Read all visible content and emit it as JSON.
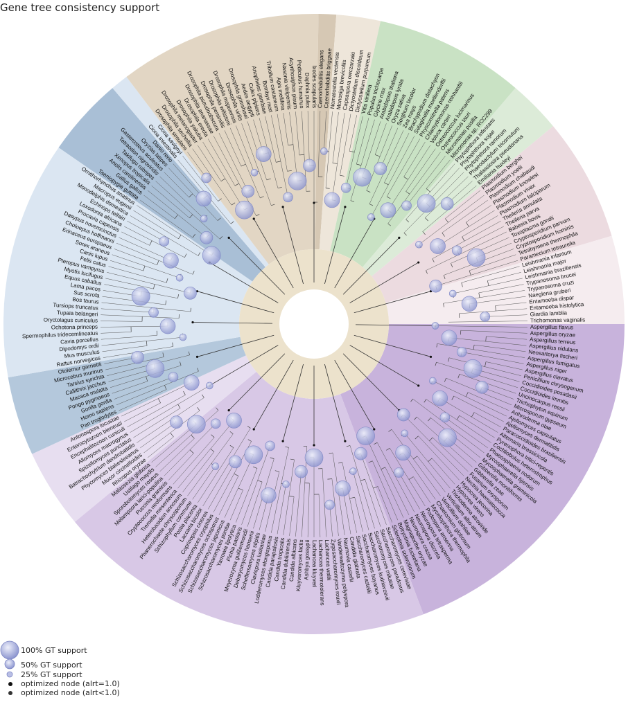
{
  "title": "Gene tree consistency support",
  "legend": [
    {
      "label": "100% GT support",
      "kind": "bubble",
      "support": 1.0
    },
    {
      "label": "50% GT support",
      "kind": "bubble",
      "support": 0.5
    },
    {
      "label": "25% GT support",
      "kind": "bubble",
      "support": 0.25
    },
    {
      "label": "optimized node (alrt=1.0)",
      "kind": "dot",
      "color": "#111111"
    },
    {
      "label": "optimized node (alrt<1.0)",
      "kind": "dot",
      "color": "#333333"
    }
  ],
  "clades": [
    {
      "name": "fungi_ascomycota",
      "color": "#c8b3dc"
    },
    {
      "name": "fungi_other",
      "color": "#d8c8e6"
    },
    {
      "name": "fungi_basal",
      "color": "#e7def0"
    },
    {
      "name": "primates",
      "color": "#b4c8dc"
    },
    {
      "name": "mammals",
      "color": "#dbe6f2"
    },
    {
      "name": "vertebrates",
      "color": "#a9bfd6"
    },
    {
      "name": "insects",
      "color": "#e2d6c4"
    },
    {
      "name": "nematodes",
      "color": "#d6c8b4"
    },
    {
      "name": "amoebozoa",
      "color": "#eee6da"
    },
    {
      "name": "plants",
      "color": "#c9e2c4"
    },
    {
      "name": "stramenopiles",
      "color": "#dcebd8"
    },
    {
      "name": "alveolates",
      "color": "#ecdbe0"
    },
    {
      "name": "protists",
      "color": "#f5ecef"
    }
  ],
  "taxa": [
    {
      "name": "Aspergillus flavus",
      "clade": 0
    },
    {
      "name": "Aspergillus oryzae",
      "clade": 0
    },
    {
      "name": "Aspergillus terreus",
      "clade": 0
    },
    {
      "name": "Aspergillus nidulans",
      "clade": 0
    },
    {
      "name": "Neosartorya fischeri",
      "clade": 0
    },
    {
      "name": "Aspergillus fumigatus",
      "clade": 0
    },
    {
      "name": "Aspergillus niger",
      "clade": 0
    },
    {
      "name": "Aspergillus clavatus",
      "clade": 0
    },
    {
      "name": "Penicillium chrysogenum",
      "clade": 0
    },
    {
      "name": "Coccidioides posadasii",
      "clade": 0
    },
    {
      "name": "Coccidioides immitis",
      "clade": 0
    },
    {
      "name": "Uncinocarpus reesii",
      "clade": 0
    },
    {
      "name": "Trichophyton equinum",
      "clade": 0
    },
    {
      "name": "Microsporum gypseum",
      "clade": 0
    },
    {
      "name": "Arthroderma otae",
      "clade": 0
    },
    {
      "name": "Ajellomyces capsulatus",
      "clade": 0
    },
    {
      "name": "Ajellomyces dermatitidis",
      "clade": 0
    },
    {
      "name": "Paracoccidioides brasiliensis",
      "clade": 0
    },
    {
      "name": "Alternaria brassicicola",
      "clade": 0
    },
    {
      "name": "Pyrenophora tritici-repentis",
      "clade": 0
    },
    {
      "name": "Cochliobolus heterostrophus",
      "clade": 0
    },
    {
      "name": "Phaeosphaeria nodorum",
      "clade": 0
    },
    {
      "name": "Mycosphaerella fijiensis",
      "clade": 0
    },
    {
      "name": "Mycosphaerella graminicola",
      "clade": 0
    },
    {
      "name": "Gibberella moniliformis",
      "clade": 0
    },
    {
      "name": "Gibberella zeae",
      "clade": 0
    },
    {
      "name": "Fusarium oxysporum",
      "clade": 0
    },
    {
      "name": "Nectria haematococca",
      "clade": 0
    },
    {
      "name": "Hypocrea jecorina",
      "clade": 0
    },
    {
      "name": "Hypocrea virens",
      "clade": 0
    },
    {
      "name": "Trichoderma atroviride",
      "clade": 0
    },
    {
      "name": "Verticillium albo-atrum",
      "clade": 0
    },
    {
      "name": "Verticillium dahliae",
      "clade": 0
    },
    {
      "name": "Chaetomium globosum",
      "clade": 0
    },
    {
      "name": "Myceliophthora thermophila",
      "clade": 0
    },
    {
      "name": "Podospora anserina",
      "clade": 0
    },
    {
      "name": "Neurospora tetrasperma",
      "clade": 0
    },
    {
      "name": "Neurospora discreta",
      "clade": 0
    },
    {
      "name": "Neurospora crassa",
      "clade": 0
    },
    {
      "name": "Magnaporthe oryzae",
      "clade": 0
    },
    {
      "name": "Botryotinia fuckeliana",
      "clade": 0
    },
    {
      "name": "Sclerotinia sclerotiorum",
      "clade": 0
    },
    {
      "name": "Saccharomyces cerevisiae",
      "clade": 1
    },
    {
      "name": "Saccharomyces paradoxus",
      "clade": 1
    },
    {
      "name": "Saccharomyces mikatae",
      "clade": 1
    },
    {
      "name": "Saccharomyces kudriavzevii",
      "clade": 1
    },
    {
      "name": "Saccharomyces bayanus",
      "clade": 1
    },
    {
      "name": "Saccharomyces castellii",
      "clade": 1
    },
    {
      "name": "Candida glabrata",
      "clade": 1
    },
    {
      "name": "Naumovia castellii",
      "clade": 1
    },
    {
      "name": "Vanderwaltozyma polyspora",
      "clade": 1
    },
    {
      "name": "Zygosaccharomyces rouxii",
      "clade": 1
    },
    {
      "name": "Lachancea waltii",
      "clade": 1
    },
    {
      "name": "Lachancea thermotolerans",
      "clade": 1
    },
    {
      "name": "Lachancea kluyveri",
      "clade": 1
    },
    {
      "name": "Ashbya gossypii",
      "clade": 1
    },
    {
      "name": "Kluyveromyces lactis",
      "clade": 1
    },
    {
      "name": "Candida albicans",
      "clade": 1
    },
    {
      "name": "Candida dubliniensis",
      "clade": 1
    },
    {
      "name": "Candida tropicalis",
      "clade": 1
    },
    {
      "name": "Candida parapsilosis",
      "clade": 1
    },
    {
      "name": "Lodderomyces elongisporus",
      "clade": 1
    },
    {
      "name": "Clavispora lusitaniae",
      "clade": 1
    },
    {
      "name": "Scheffersomyces stipitis",
      "clade": 1
    },
    {
      "name": "Debaryomyces hansenii",
      "clade": 1
    },
    {
      "name": "Meyerozyma guilliermondii",
      "clade": 1
    },
    {
      "name": "Pichia pastoris",
      "clade": 1
    },
    {
      "name": "Yarrowia lipolytica",
      "clade": 1
    },
    {
      "name": "Schizosaccharomyces pombe",
      "clade": 1
    },
    {
      "name": "Schizosaccharomyces japonicus",
      "clade": 1
    },
    {
      "name": "Schizosaccharomyces octosporus",
      "clade": 1
    },
    {
      "name": "Schizosaccharomyces cryophilus",
      "clade": 1
    },
    {
      "name": "Coprinopsis cinerea",
      "clade": 1
    },
    {
      "name": "Laccaria bicolor",
      "clade": 1
    },
    {
      "name": "Postia placenta",
      "clade": 1
    },
    {
      "name": "Schizophyllum commune",
      "clade": 1
    },
    {
      "name": "Phanerochaete chrysosporium",
      "clade": 1
    },
    {
      "name": "Heterobasidion annosum",
      "clade": 1
    },
    {
      "name": "Tremella mesenterica",
      "clade": 1
    },
    {
      "name": "Cryptococcus neoformans",
      "clade": 1
    },
    {
      "name": "Puccinia graminis",
      "clade": 1
    },
    {
      "name": "Melampsora larici-populina",
      "clade": 1
    },
    {
      "name": "Sporobolomyces roseus",
      "clade": 1
    },
    {
      "name": "Ustilago maydis",
      "clade": 1
    },
    {
      "name": "Malassezia globosa",
      "clade": 1
    },
    {
      "name": "Rhizopus oryzae",
      "clade": 2
    },
    {
      "name": "Mucor circinelloides",
      "clade": 2
    },
    {
      "name": "Phycomyces blakesleeanus",
      "clade": 2
    },
    {
      "name": "Batrachochytrium dendrobatidis",
      "clade": 2
    },
    {
      "name": "Spizellomyces punctatus",
      "clade": 2
    },
    {
      "name": "Allomyces macrogynus",
      "clade": 2
    },
    {
      "name": "Encephalitozoon cuniculi",
      "clade": 2
    },
    {
      "name": "Enterocytozoon bieneusi",
      "clade": 2
    },
    {
      "name": "Antonospora locustae",
      "clade": 2
    },
    {
      "name": "Pan troglodytes",
      "clade": 3
    },
    {
      "name": "Homo sapiens",
      "clade": 3
    },
    {
      "name": "Gorilla gorilla",
      "clade": 3
    },
    {
      "name": "Pongo pygmaeus",
      "clade": 3
    },
    {
      "name": "Macaca mulatta",
      "clade": 3
    },
    {
      "name": "Callithrix jacchus",
      "clade": 3
    },
    {
      "name": "Tarsius syrichta",
      "clade": 3
    },
    {
      "name": "Microcebus murinus",
      "clade": 3
    },
    {
      "name": "Otolemur garnettii",
      "clade": 3
    },
    {
      "name": "Rattus norvegicus",
      "clade": 4
    },
    {
      "name": "Mus musculus",
      "clade": 4
    },
    {
      "name": "Dipodomys ordii",
      "clade": 4
    },
    {
      "name": "Cavia porcellus",
      "clade": 4
    },
    {
      "name": "Spermophilus tridecemlineatus",
      "clade": 4
    },
    {
      "name": "Ochotona princeps",
      "clade": 4
    },
    {
      "name": "Oryctolagus cuniculus",
      "clade": 4
    },
    {
      "name": "Tupaia belangeri",
      "clade": 4
    },
    {
      "name": "Tursiops truncatus",
      "clade": 4
    },
    {
      "name": "Bos taurus",
      "clade": 4
    },
    {
      "name": "Sus scrofa",
      "clade": 4
    },
    {
      "name": "Lama pacos",
      "clade": 4
    },
    {
      "name": "Equus caballus",
      "clade": 4
    },
    {
      "name": "Myotis lucifugus",
      "clade": 4
    },
    {
      "name": "Pteropus vampyrus",
      "clade": 4
    },
    {
      "name": "Felis catus",
      "clade": 4
    },
    {
      "name": "Canis lupus",
      "clade": 4
    },
    {
      "name": "Sorex araneus",
      "clade": 4
    },
    {
      "name": "Erinaceus europaeus",
      "clade": 4
    },
    {
      "name": "Choloepus hoffmanni",
      "clade": 4
    },
    {
      "name": "Dasypus novemcinctus",
      "clade": 4
    },
    {
      "name": "Procavia capensis",
      "clade": 4
    },
    {
      "name": "Loxodonta africana",
      "clade": 4
    },
    {
      "name": "Echinops telfairi",
      "clade": 4
    },
    {
      "name": "Monodelphis domestica",
      "clade": 4
    },
    {
      "name": "Macropus eugenii",
      "clade": 4
    },
    {
      "name": "Ornithorhynchus anatinus",
      "clade": 4
    },
    {
      "name": "Taeniopygia guttata",
      "clade": 5
    },
    {
      "name": "Gallus gallus",
      "clade": 5
    },
    {
      "name": "Anolis carolinensis",
      "clade": 5
    },
    {
      "name": "Xenopus tropicalis",
      "clade": 5
    },
    {
      "name": "Takifugu rubripes",
      "clade": 5
    },
    {
      "name": "Tetraodon nigroviridis",
      "clade": 5
    },
    {
      "name": "Gasterosteus aculeatus",
      "clade": 5
    },
    {
      "name": "Oryzias latipes",
      "clade": 5
    },
    {
      "name": "Danio rerio",
      "clade": 5
    },
    {
      "name": "Ciona intestinalis",
      "clade": 4
    },
    {
      "name": "Ciona savignyi",
      "clade": 4
    },
    {
      "name": "Drosophila simulans",
      "clade": 6
    },
    {
      "name": "Drosophila sechellia",
      "clade": 6
    },
    {
      "name": "Drosophila melanogaster",
      "clade": 6
    },
    {
      "name": "Drosophila yakuba",
      "clade": 6
    },
    {
      "name": "Drosophila erecta",
      "clade": 6
    },
    {
      "name": "Drosophila ananassae",
      "clade": 6
    },
    {
      "name": "Drosophila pseudoobscura",
      "clade": 6
    },
    {
      "name": "Drosophila persimilis",
      "clade": 6
    },
    {
      "name": "Drosophila willistoni",
      "clade": 6
    },
    {
      "name": "Drosophila mojavensis",
      "clade": 6
    },
    {
      "name": "Drosophila virilis",
      "clade": 6
    },
    {
      "name": "Drosophila grimshawi",
      "clade": 6
    },
    {
      "name": "Aedes aegypti",
      "clade": 6
    },
    {
      "name": "Culex pipiens",
      "clade": 6
    },
    {
      "name": "Anopheles gambiae",
      "clade": 6
    },
    {
      "name": "Bombyx mori",
      "clade": 6
    },
    {
      "name": "Tribolium castaneum",
      "clade": 6
    },
    {
      "name": "Apis mellifera",
      "clade": 6
    },
    {
      "name": "Nasonia vitripennis",
      "clade": 6
    },
    {
      "name": "Acyrthosiphon pisum",
      "clade": 6
    },
    {
      "name": "Pediculus humanus",
      "clade": 6
    },
    {
      "name": "Daphnia pulex",
      "clade": 6
    },
    {
      "name": "Ixodes scapularis",
      "clade": 6
    },
    {
      "name": "Caenorhabditis elegans",
      "clade": 7
    },
    {
      "name": "Caenorhabditis briggsae",
      "clade": 7
    },
    {
      "name": "Nematostella vectensis",
      "clade": 8
    },
    {
      "name": "Monosiga brevicollis",
      "clade": 8
    },
    {
      "name": "Capsaspora owczarzaki",
      "clade": 8
    },
    {
      "name": "Dictyostelium discoideum",
      "clade": 8
    },
    {
      "name": "Dictyostelium purpureum",
      "clade": 8
    },
    {
      "name": "Vitis vinifera",
      "clade": 9
    },
    {
      "name": "Populus trichocarpa",
      "clade": 9
    },
    {
      "name": "Glycine max",
      "clade": 9
    },
    {
      "name": "Arabidopsis thaliana",
      "clade": 9
    },
    {
      "name": "Arabidopsis lyrata",
      "clade": 9
    },
    {
      "name": "Oryza sativa",
      "clade": 9
    },
    {
      "name": "Sorghum bicolor",
      "clade": 9
    },
    {
      "name": "Zea mays",
      "clade": 9
    },
    {
      "name": "Brachypodium distachyon",
      "clade": 9
    },
    {
      "name": "Selaginella moellendorffii",
      "clade": 9
    },
    {
      "name": "Physcomitrella patens",
      "clade": 9
    },
    {
      "name": "Chlamydomonas reinhardtii",
      "clade": 9
    },
    {
      "name": "Volvox carteri",
      "clade": 9
    },
    {
      "name": "Ostreococcus lucimarinus",
      "clade": 9
    },
    {
      "name": "Ostreococcus tauri",
      "clade": 9
    },
    {
      "name": "Micromonas pusilla",
      "clade": 9
    },
    {
      "name": "Micromonas sp. RCC299",
      "clade": 9
    },
    {
      "name": "Phytophthora infestans",
      "clade": 10
    },
    {
      "name": "Phytophthora sojae",
      "clade": 10
    },
    {
      "name": "Phytophthora ramorum",
      "clade": 10
    },
    {
      "name": "Phaeodactylum tricornutum",
      "clade": 10
    },
    {
      "name": "Thalassiosira pseudonana",
      "clade": 10
    },
    {
      "name": "Emiliania huxleyi",
      "clade": 10
    },
    {
      "name": "Plasmodium berghei",
      "clade": 11
    },
    {
      "name": "Plasmodium yoelii",
      "clade": 11
    },
    {
      "name": "Plasmodium chabaudi",
      "clade": 11
    },
    {
      "name": "Plasmodium knowlesi",
      "clade": 11
    },
    {
      "name": "Plasmodium vivax",
      "clade": 11
    },
    {
      "name": "Plasmodium falciparum",
      "clade": 11
    },
    {
      "name": "Theileria annulata",
      "clade": 11
    },
    {
      "name": "Theileria parva",
      "clade": 11
    },
    {
      "name": "Babesia bovis",
      "clade": 11
    },
    {
      "name": "Toxoplasma gondii",
      "clade": 11
    },
    {
      "name": "Cryptosporidium parvum",
      "clade": 11
    },
    {
      "name": "Cryptosporidium hominis",
      "clade": 11
    },
    {
      "name": "Tetrahymena thermophila",
      "clade": 11
    },
    {
      "name": "Paramecium tetraurelia",
      "clade": 11
    },
    {
      "name": "Leishmania infantum",
      "clade": 12
    },
    {
      "name": "Leishmania major",
      "clade": 12
    },
    {
      "name": "Leishmania braziliensis",
      "clade": 12
    },
    {
      "name": "Trypanosoma brucei",
      "clade": 12
    },
    {
      "name": "Trypanosoma cruzi",
      "clade": 12
    },
    {
      "name": "Naegleria gruberi",
      "clade": 12
    },
    {
      "name": "Entamoeba dispar",
      "clade": 12
    },
    {
      "name": "Entamoeba histolytica",
      "clade": 12
    },
    {
      "name": "Giardia lamblia",
      "clade": 12
    },
    {
      "name": "Trichomonas vaginalis",
      "clade": 12
    }
  ]
}
